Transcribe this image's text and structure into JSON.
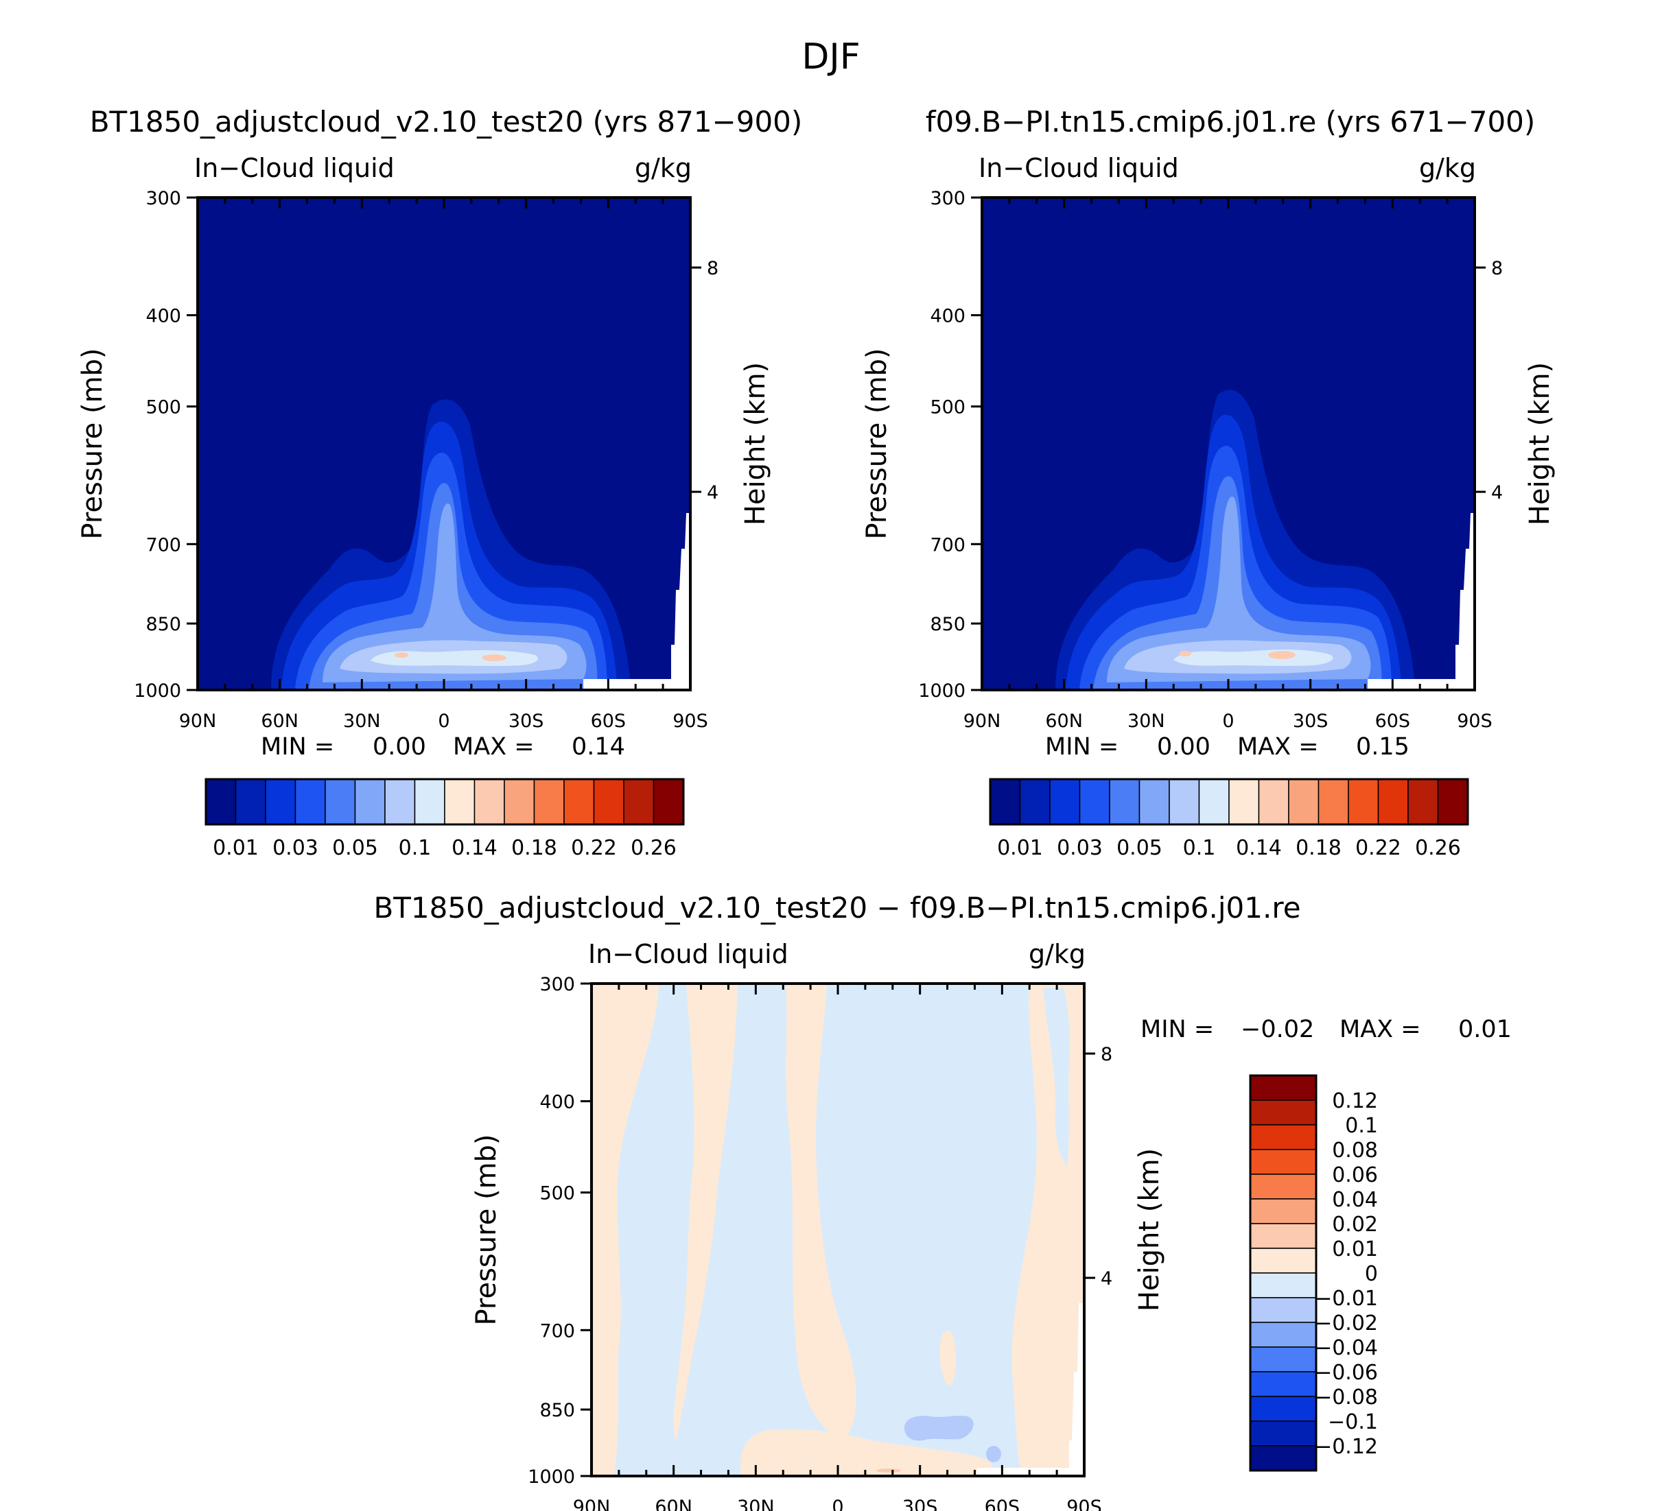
{
  "figure_title": "DJF",
  "colors": {
    "seq": [
      "#000e8a",
      "#0021b4",
      "#0735dc",
      "#1e55f2",
      "#4a7df6",
      "#80a7f8",
      "#b3cafa",
      "#d9ebfb",
      "#fde9d6",
      "#fccab0",
      "#f9a47c",
      "#f77c4a",
      "#f0531e",
      "#e0340b",
      "#b61e07",
      "#850000"
    ],
    "diff_pos": "#fde9d6",
    "diff_neg": "#d9ebfb",
    "diff_neg2": "#b3cafa",
    "diff_pos2": "#fccab0"
  },
  "panels": [
    {
      "title": "BT1850_adjustcloud_v2.10_test20 (yrs 871−900)",
      "left_label": "In−Cloud liquid",
      "right_label": "g/kg",
      "ylabel": "Pressure (mb)",
      "y2label": "Height (km)",
      "min_label": "MIN =",
      "min_value": "0.00",
      "max_label": "MAX =",
      "max_value": "0.14"
    },
    {
      "title": "f09.B−PI.tn15.cmip6.j01.re (yrs 671−700)",
      "left_label": "In−Cloud liquid",
      "right_label": "g/kg",
      "ylabel": "Pressure (mb)",
      "y2label": "Height (km)",
      "min_label": "MIN =",
      "min_value": "0.00",
      "max_label": "MAX =",
      "max_value": "0.15"
    },
    {
      "title": "BT1850_adjustcloud_v2.10_test20 − f09.B−PI.tn15.cmip6.j01.re",
      "left_label": "In−Cloud liquid",
      "right_label": "g/kg",
      "ylabel": "Pressure (mb)",
      "y2label": "Height (km)",
      "min_label": "MIN =",
      "min_value": "−0.02",
      "max_label": "MAX =",
      "max_value": "0.01"
    }
  ],
  "chart_data": {
    "type": "heatmap",
    "x_ticks": [
      "90N",
      "60N",
      "30N",
      "0",
      "30S",
      "60S",
      "90S"
    ],
    "y_ticks": [
      "300",
      "400",
      "500",
      "700",
      "850",
      "1000"
    ],
    "y2_ticks": [
      "8",
      "4"
    ],
    "ylim": [
      1000,
      300
    ],
    "colorbar_seq_labels": [
      "0.01",
      "0.03",
      "0.05",
      "0.1",
      "0.14",
      "0.18",
      "0.22",
      "0.26"
    ],
    "colorbar_diff_labels": [
      "0.12",
      "0.1",
      "0.08",
      "0.06",
      "0.04",
      "0.02",
      "0.01",
      "0",
      "−0.01",
      "−0.02",
      "−0.04",
      "−0.06",
      "−0.08",
      "−0.1",
      "−0.12"
    ]
  }
}
